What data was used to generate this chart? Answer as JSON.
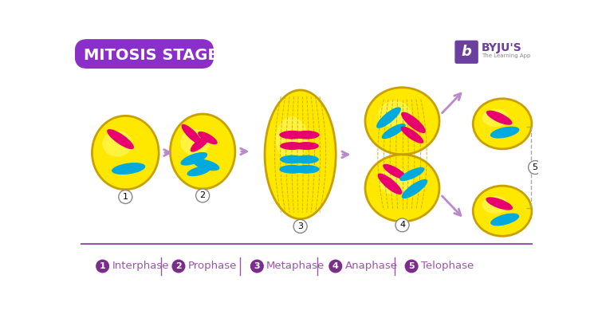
{
  "title": "MITOSIS STAGES",
  "title_bg": "#8B2FC9",
  "title_color": "#FFFFFF",
  "bg_color": "#FFFFFF",
  "cell_yellow": "#FFE800",
  "cell_yellow2": "#FFD700",
  "cell_outline": "#C8A000",
  "chr_pink": "#E8006E",
  "chr_blue": "#00AADD",
  "arrow_color": "#BB88CC",
  "label_bg": "#7B2D8B",
  "separator_color": "#9955AA",
  "bottom_text_color": "#9955AA",
  "byju_purple": "#6B3FA0",
  "stage_names": [
    "Interphase",
    "Prophase",
    "Metaphase",
    "Anaphase",
    "Telophase"
  ],
  "spindle_color": "#C8A000"
}
